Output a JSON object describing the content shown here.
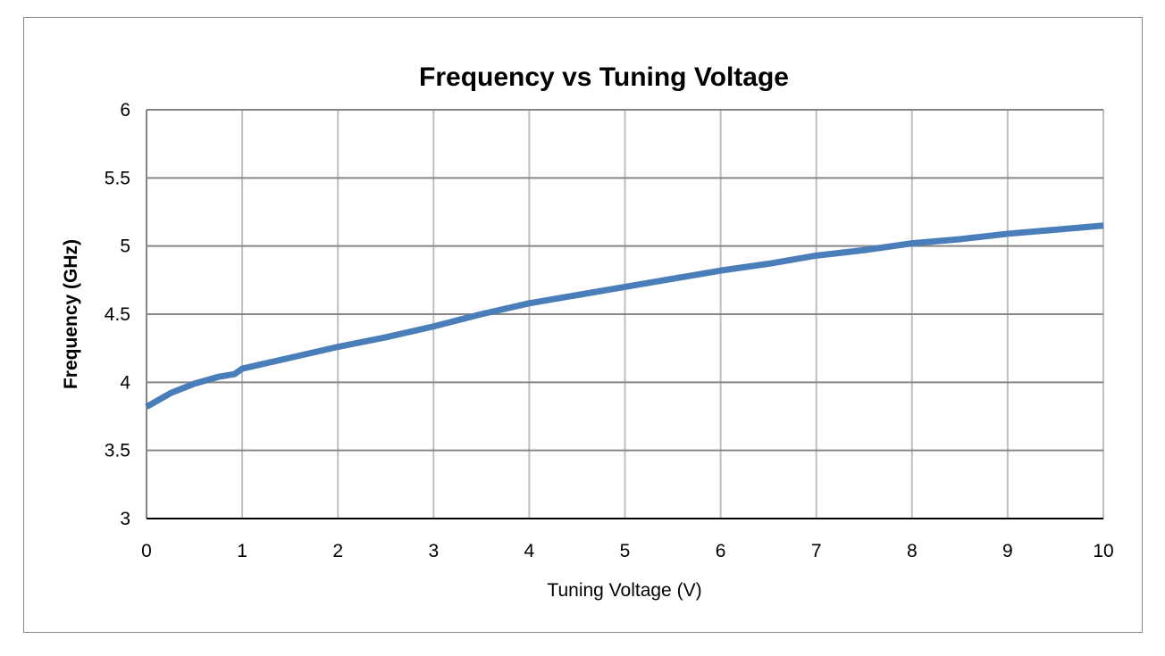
{
  "chart_data": {
    "type": "line",
    "title": "Frequency vs Tuning Voltage",
    "xlabel": "Tuning Voltage (V)",
    "ylabel": "Frequency (GHz)",
    "xlim": [
      0,
      10
    ],
    "ylim": [
      3,
      6
    ],
    "xticks": [
      "0",
      "1",
      "2",
      "3",
      "4",
      "5",
      "6",
      "7",
      "8",
      "9",
      "10"
    ],
    "yticks": [
      "3",
      "3.5",
      "4",
      "4.5",
      "5",
      "5.5",
      "6"
    ],
    "grid": true,
    "legend": "none",
    "series": [
      {
        "color": "#4A7EBB",
        "x": [
          0,
          0.25,
          0.5,
          0.75,
          0.92,
          1.0,
          1.5,
          2,
          2.5,
          3,
          3.5,
          4,
          4.5,
          5,
          5.5,
          6,
          6.5,
          7,
          7.5,
          8,
          8.5,
          9,
          9.5,
          10
        ],
        "y": [
          3.82,
          3.92,
          3.99,
          4.04,
          4.06,
          4.1,
          4.18,
          4.26,
          4.33,
          4.41,
          4.5,
          4.58,
          4.64,
          4.7,
          4.76,
          4.82,
          4.87,
          4.93,
          4.97,
          5.02,
          5.05,
          5.09,
          5.12,
          5.15
        ]
      }
    ]
  }
}
